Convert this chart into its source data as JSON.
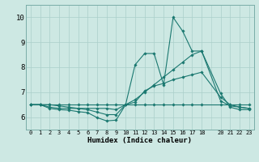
{
  "xlabel": "Humidex (Indice chaleur)",
  "bg_color": "#cde8e3",
  "line_color": "#1a7870",
  "grid_color": "#aacfca",
  "xlim": [
    -0.5,
    23.5
  ],
  "ylim": [
    5.5,
    10.5
  ],
  "xticks": [
    0,
    1,
    2,
    3,
    4,
    5,
    6,
    7,
    8,
    9,
    10,
    11,
    12,
    13,
    14,
    15,
    16,
    17,
    18,
    20,
    21,
    22,
    23
  ],
  "yticks": [
    6,
    7,
    8,
    9,
    10
  ],
  "series": [
    {
      "x": [
        0,
        1,
        2,
        3,
        4,
        5,
        6,
        7,
        8,
        9,
        10,
        11,
        12,
        13,
        14,
        15,
        16,
        17,
        18,
        20,
        21,
        22,
        23
      ],
      "y": [
        6.5,
        6.5,
        6.35,
        6.3,
        6.28,
        6.22,
        6.18,
        5.98,
        5.85,
        5.88,
        6.5,
        8.1,
        8.55,
        8.55,
        7.3,
        10.0,
        9.45,
        8.65,
        8.65,
        6.95,
        6.4,
        6.3,
        6.3
      ]
    },
    {
      "x": [
        0,
        1,
        2,
        3,
        4,
        5,
        6,
        7,
        8,
        9,
        10,
        11,
        12,
        13,
        14,
        15,
        16,
        17,
        18,
        20,
        21,
        22,
        23
      ],
      "y": [
        6.5,
        6.5,
        6.4,
        6.35,
        6.35,
        6.35,
        6.35,
        6.35,
        6.35,
        6.3,
        6.5,
        6.7,
        7.0,
        7.3,
        7.6,
        7.9,
        8.2,
        8.5,
        8.65,
        6.65,
        6.45,
        6.4,
        6.35
      ]
    },
    {
      "x": [
        0,
        1,
        2,
        3,
        4,
        5,
        6,
        7,
        8,
        9,
        10,
        11,
        12,
        13,
        14,
        15,
        16,
        17,
        18,
        20,
        21,
        22,
        23
      ],
      "y": [
        6.5,
        6.5,
        6.5,
        6.5,
        6.5,
        6.5,
        6.5,
        6.5,
        6.5,
        6.5,
        6.5,
        6.5,
        6.5,
        6.5,
        6.5,
        6.5,
        6.5,
        6.5,
        6.5,
        6.5,
        6.5,
        6.5,
        6.5
      ]
    },
    {
      "x": [
        0,
        1,
        2,
        3,
        4,
        5,
        6,
        7,
        8,
        9,
        10,
        11,
        12,
        13,
        14,
        15,
        16,
        17,
        18,
        20,
        21,
        22,
        23
      ],
      "y": [
        6.5,
        6.5,
        6.5,
        6.45,
        6.4,
        6.35,
        6.3,
        6.2,
        6.1,
        6.1,
        6.5,
        6.6,
        7.05,
        7.25,
        7.35,
        7.5,
        7.6,
        7.7,
        7.8,
        6.8,
        6.5,
        6.4,
        6.35
      ]
    }
  ]
}
